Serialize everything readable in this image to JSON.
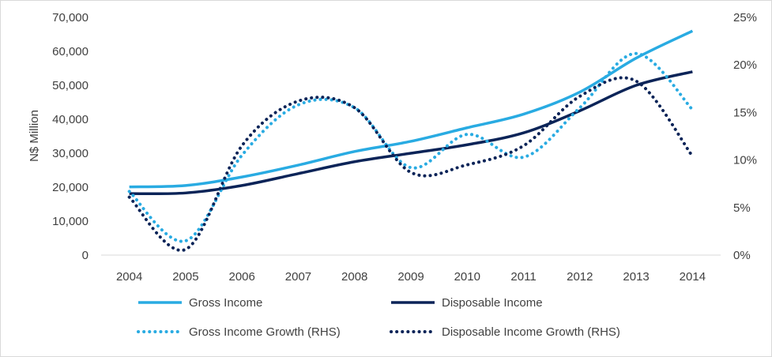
{
  "chart_data": {
    "type": "line",
    "title": "",
    "xlabel": "",
    "ylabel": "N$ Million",
    "ylim": [
      0,
      70000
    ],
    "y2lim": [
      0,
      0.25
    ],
    "categories": [
      "2004",
      "2005",
      "2006",
      "2007",
      "2008",
      "2009",
      "2010",
      "2011",
      "2012",
      "2013",
      "2014"
    ],
    "y_ticks": [
      "0",
      "10,000",
      "20,000",
      "30,000",
      "40,000",
      "50,000",
      "60,000",
      "70,000"
    ],
    "y2_ticks": [
      "0%",
      "5%",
      "10%",
      "15%",
      "20%",
      "25%"
    ],
    "grid": false,
    "legend_position": "bottom",
    "series": [
      {
        "name": "Gross Income",
        "axis": "left",
        "style": "solid",
        "color": "#29abe2",
        "values": [
          20100,
          20500,
          23000,
          26500,
          30500,
          33500,
          37500,
          41500,
          48000,
          58000,
          66000
        ]
      },
      {
        "name": "Disposable Income",
        "axis": "left",
        "style": "solid",
        "color": "#0b2458",
        "values": [
          18100,
          18300,
          20500,
          24000,
          27500,
          30000,
          32500,
          36000,
          42500,
          50000,
          54000
        ]
      },
      {
        "name": "Gross Income Growth (RHS)",
        "axis": "right",
        "style": "dotted",
        "color": "#29abe2",
        "values": [
          0.067,
          0.015,
          0.105,
          0.158,
          0.155,
          0.092,
          0.127,
          0.103,
          0.155,
          0.212,
          0.153
        ]
      },
      {
        "name": "Disposable Income Growth (RHS)",
        "axis": "right",
        "style": "dotted",
        "color": "#0b2458",
        "values": [
          0.061,
          0.006,
          0.115,
          0.162,
          0.155,
          0.087,
          0.095,
          0.115,
          0.167,
          0.183,
          0.104
        ]
      }
    ]
  }
}
